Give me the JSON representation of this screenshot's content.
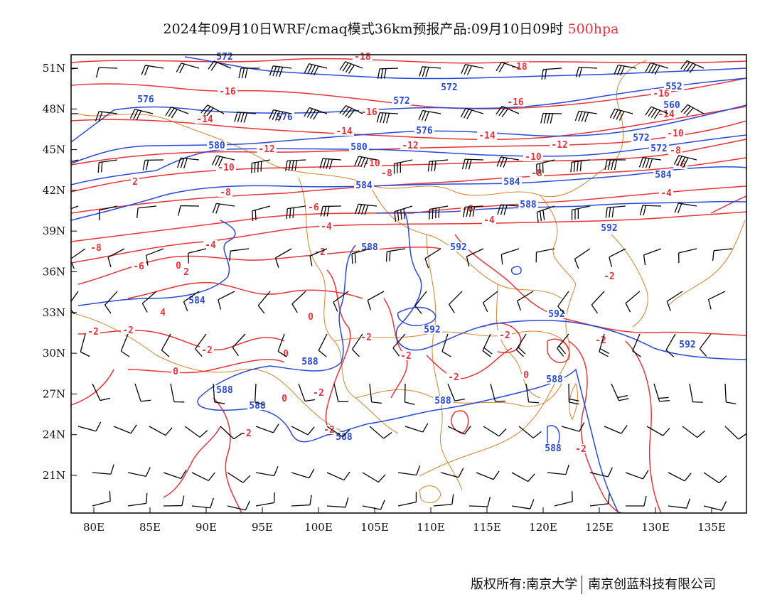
{
  "header": {
    "title_main": "2024年09月10日WRF/cmaq模式36km预报产品:09月10日09时",
    "title_level": "500hpa",
    "level_color": "#e8333a"
  },
  "footer": {
    "copyright_left": "版权所有:南京大学",
    "copyright_right": "南京创蓝科技有限公司"
  },
  "map": {
    "lon_labels": [
      "80E",
      "85E",
      "90E",
      "95E",
      "100E",
      "105E",
      "110E",
      "115E",
      "120E",
      "125E",
      "130E",
      "135E"
    ],
    "lat_labels": [
      "51N",
      "48N",
      "45N",
      "42N",
      "39N",
      "36N",
      "33N",
      "30N",
      "27N",
      "24N",
      "21N"
    ],
    "colors": {
      "height": "#2a49d8",
      "temperature": "#e8333a",
      "coastline": "#d9822b",
      "wind": "#000000"
    },
    "height_labels": [
      "572",
      "576",
      "580",
      "584",
      "588",
      "592",
      "560",
      "552"
    ],
    "temp_labels": [
      "-18",
      "-16",
      "-14",
      "-12",
      "-10",
      "-8",
      "-6",
      "-4",
      "-2",
      "0",
      "2",
      "4"
    ]
  }
}
